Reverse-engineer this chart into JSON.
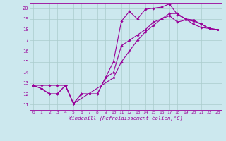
{
  "xlabel": "Windchill (Refroidissement éolien,°C)",
  "bg_color": "#cce8ee",
  "line_color": "#990099",
  "grid_color": "#aacccc",
  "xlim": [
    -0.5,
    23.5
  ],
  "ylim": [
    10.5,
    20.5
  ],
  "yticks": [
    11,
    12,
    13,
    14,
    15,
    16,
    17,
    18,
    19,
    20
  ],
  "xticks": [
    0,
    1,
    2,
    3,
    4,
    5,
    6,
    7,
    8,
    9,
    10,
    11,
    12,
    13,
    14,
    15,
    16,
    17,
    18,
    19,
    20,
    21,
    22,
    23
  ],
  "line1_x": [
    0,
    1,
    2,
    3,
    4,
    5,
    6,
    7,
    8,
    9,
    10,
    11,
    12,
    13,
    14,
    15,
    16,
    17,
    18,
    19,
    20,
    21,
    22,
    23
  ],
  "line1_y": [
    12.8,
    12.5,
    12.0,
    12.0,
    12.8,
    11.1,
    12.0,
    12.0,
    12.0,
    13.5,
    14.0,
    16.5,
    17.0,
    17.5,
    18.0,
    18.7,
    19.0,
    19.3,
    18.7,
    18.9,
    18.8,
    18.5,
    18.1,
    18.0
  ],
  "line2_x": [
    0,
    1,
    2,
    3,
    4,
    5,
    6,
    7,
    8,
    9,
    10,
    11,
    12,
    13,
    14,
    15,
    16,
    17,
    18,
    19,
    20,
    21,
    22,
    23
  ],
  "line2_y": [
    12.8,
    12.5,
    12.0,
    12.0,
    12.8,
    11.1,
    12.0,
    12.0,
    12.0,
    13.5,
    15.0,
    18.8,
    19.7,
    19.0,
    19.9,
    20.0,
    20.1,
    20.4,
    19.4,
    19.0,
    18.9,
    18.5,
    18.1,
    18.0
  ],
  "line3_x": [
    0,
    1,
    2,
    3,
    4,
    5,
    10,
    11,
    12,
    13,
    14,
    15,
    16,
    17,
    18,
    19,
    20,
    21,
    22,
    23
  ],
  "line3_y": [
    12.8,
    12.8,
    12.8,
    12.8,
    12.8,
    11.1,
    13.5,
    15.0,
    16.0,
    17.0,
    17.8,
    18.4,
    19.0,
    19.5,
    19.5,
    19.0,
    18.5,
    18.2,
    18.1,
    18.0
  ]
}
